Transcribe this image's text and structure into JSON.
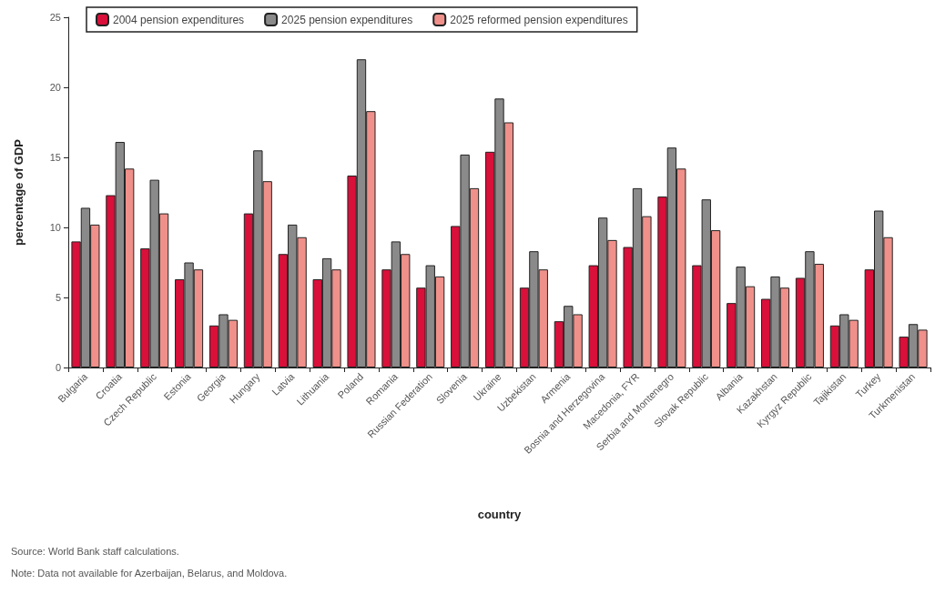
{
  "chart_data": {
    "type": "bar",
    "xlabel": "country",
    "ylabel": "percentage of GDP",
    "categories": [
      "Bulgaria",
      "Croatia",
      "Czech Republic",
      "Estonia",
      "Georgia",
      "Hungary",
      "Latvia",
      "Lithuania",
      "Poland",
      "Romania",
      "Russian Federation",
      "Slovenia",
      "Ukraine",
      "Uzbekistan",
      "Armenia",
      "Bosnia and Herzegovina",
      "Macedonia, FYR",
      "Serbia and Montenegro",
      "Slovak Republic",
      "Albania",
      "Kazakhstan",
      "Kyrgyz Republic",
      "Tajikistan",
      "Turkey",
      "Turkmenistan"
    ],
    "series": [
      {
        "name": "2004 pension expenditures",
        "color": "#d8103a",
        "values": [
          9.0,
          12.3,
          8.5,
          6.3,
          3.0,
          11.0,
          8.1,
          6.3,
          13.7,
          7.0,
          5.7,
          10.1,
          15.4,
          5.7,
          3.3,
          7.3,
          8.6,
          12.2,
          7.3,
          4.6,
          4.9,
          6.4,
          3.0,
          7.0,
          2.2
        ]
      },
      {
        "name": "2025 pension expenditures",
        "color": "#8a8a8a",
        "values": [
          11.4,
          16.1,
          13.4,
          7.5,
          3.8,
          15.5,
          10.2,
          7.8,
          22.0,
          9.0,
          7.3,
          15.2,
          19.2,
          8.3,
          4.4,
          10.7,
          12.8,
          15.7,
          12.0,
          7.2,
          6.5,
          8.3,
          3.8,
          11.2,
          3.1
        ]
      },
      {
        "name": "2025 reformed pension expenditures",
        "color": "#f0908a",
        "values": [
          10.2,
          14.2,
          11.0,
          7.0,
          3.4,
          13.3,
          9.3,
          7.0,
          18.3,
          8.1,
          6.5,
          12.8,
          17.5,
          7.0,
          3.8,
          9.1,
          10.8,
          14.2,
          9.8,
          5.8,
          5.7,
          7.4,
          3.4,
          9.3,
          2.7
        ]
      }
    ],
    "ylim": [
      0,
      25
    ],
    "yticks": [
      0,
      5,
      10,
      15,
      20,
      25
    ],
    "grid": false,
    "legend": "top left",
    "annotations": [
      "Source: World Bank staff calculations.",
      "Note: Data not available for Azerbaijan, Belarus, and Moldova."
    ]
  }
}
